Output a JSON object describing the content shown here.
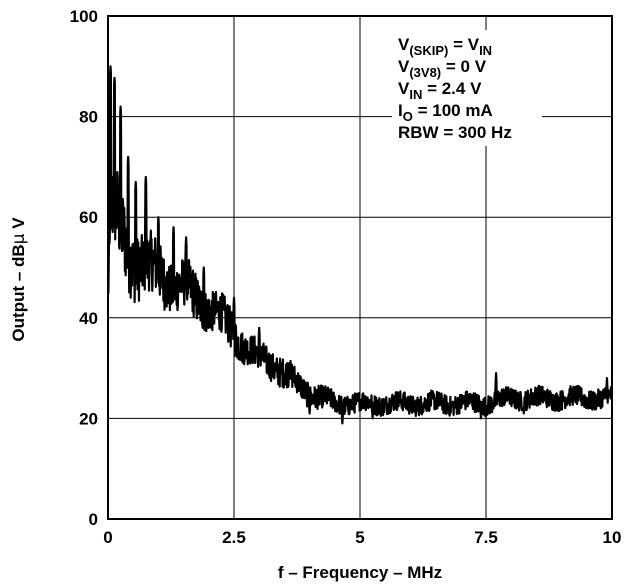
{
  "chart_data": {
    "type": "line",
    "title": "",
    "xlabel": "f – Frequency – MHz",
    "ylabel_parts": {
      "before": "Output – dB",
      "mu": "µ",
      "after": " V"
    },
    "xlim": [
      0,
      10
    ],
    "ylim": [
      0,
      100
    ],
    "xticks": [
      0,
      2.5,
      5,
      7.5,
      10
    ],
    "xtick_labels": [
      "0",
      "2.5",
      "5",
      "7.5",
      "10"
    ],
    "yticks": [
      0,
      20,
      40,
      60,
      80,
      100
    ],
    "ytick_labels": [
      "0",
      "20",
      "40",
      "60",
      "80",
      "100"
    ],
    "grid": true,
    "series": [
      {
        "color": "#000000",
        "envelope_x": [
          0,
          0.05,
          0.1,
          0.2,
          0.35,
          0.5,
          0.75,
          1.0,
          1.25,
          1.5,
          1.75,
          2.0,
          2.25,
          2.5,
          2.75,
          3.0,
          3.25,
          3.5,
          3.75,
          4.0,
          4.5,
          5.0,
          5.5,
          6.0,
          6.5,
          7.0,
          7.5,
          8.0,
          8.5,
          9.0,
          9.5,
          10.0
        ],
        "envelope_mid_y": [
          46,
          55,
          62,
          58,
          55,
          52,
          50,
          49,
          47,
          46,
          44,
          42,
          40,
          37,
          34,
          32,
          31,
          29,
          27,
          25,
          23,
          23,
          23,
          23,
          23,
          23,
          23,
          24,
          24,
          24,
          24,
          24
        ],
        "envelope_half_range": [
          6,
          10,
          10,
          9,
          8,
          7,
          6,
          6,
          5,
          5,
          5,
          4,
          4,
          4,
          3,
          3,
          3,
          3,
          2.5,
          2.5,
          2,
          2,
          2,
          2,
          2,
          2,
          2,
          2,
          2,
          2,
          2,
          2
        ],
        "peaks": [
          {
            "x": 0.05,
            "y": 90
          },
          {
            "x": 0.13,
            "y": 88
          },
          {
            "x": 0.25,
            "y": 82
          },
          {
            "x": 0.4,
            "y": 72
          },
          {
            "x": 0.55,
            "y": 67
          },
          {
            "x": 0.75,
            "y": 68
          },
          {
            "x": 1.0,
            "y": 60
          },
          {
            "x": 1.3,
            "y": 58
          },
          {
            "x": 1.55,
            "y": 56
          },
          {
            "x": 1.9,
            "y": 50
          },
          {
            "x": 2.5,
            "y": 44
          },
          {
            "x": 3.0,
            "y": 38
          },
          {
            "x": 3.6,
            "y": 31
          },
          {
            "x": 7.7,
            "y": 29
          },
          {
            "x": 9.9,
            "y": 28
          }
        ],
        "dips": [
          {
            "x": 4.0,
            "y": 21
          },
          {
            "x": 4.65,
            "y": 19
          },
          {
            "x": 5.25,
            "y": 20
          },
          {
            "x": 7.4,
            "y": 20
          },
          {
            "x": 8.25,
            "y": 21
          }
        ]
      }
    ]
  },
  "legend_box": [
    {
      "main": "V",
      "sub": "(SKIP)",
      "rest": " = V",
      "sub2": "IN"
    },
    {
      "main": "V",
      "sub": "(3V8)",
      "rest": " = 0 V"
    },
    {
      "main": "V",
      "sub": "IN",
      "rest": " = 2.4 V"
    },
    {
      "main": "I",
      "sub": "O",
      "rest": " = 100 mA"
    },
    {
      "main": "RBW = 300 Hz"
    }
  ]
}
